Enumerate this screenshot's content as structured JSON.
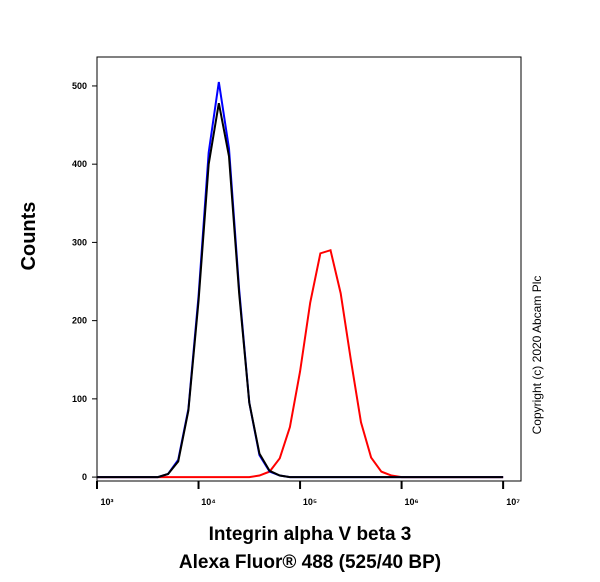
{
  "chart_data": {
    "type": "line",
    "x_label": [
      "Integrin alpha V beta 3",
      "Alexa Fluor® 488  (525/40 BP)"
    ],
    "y_label": "Counts",
    "annotation": "Copyright (c) 2020 Abcam Plc",
    "x_log": true,
    "x": [
      1000,
      1259,
      1585,
      1995,
      2512,
      3162,
      3981,
      5012,
      6310,
      7943,
      10000,
      12589,
      15849,
      19953,
      25119,
      31623,
      39811,
      50119,
      63096,
      79433,
      100000,
      125893,
      158489,
      199526,
      251189,
      316228,
      398107,
      501187,
      630957,
      794328,
      1000000,
      1258925,
      1584893,
      1995262,
      2511886,
      3162278,
      3981072,
      5011872,
      6309573,
      7943282,
      10000000
    ],
    "series": [
      {
        "color": "#ff0000",
        "values": [
          0,
          0,
          0,
          0,
          0,
          0,
          0,
          0,
          0,
          0,
          0,
          0,
          0,
          0,
          0,
          0,
          2,
          7,
          24,
          64,
          135,
          223,
          286,
          290,
          235,
          150,
          70,
          25,
          7,
          2,
          0,
          0,
          0,
          0,
          0,
          0,
          0,
          0,
          0,
          0,
          0
        ]
      },
      {
        "color": "#0000ff",
        "values": [
          0,
          0,
          0,
          0,
          0,
          0,
          0,
          4,
          22,
          87,
          231,
          415,
          505,
          420,
          240,
          95,
          28,
          7,
          2,
          0,
          0,
          0,
          0,
          0,
          0,
          0,
          0,
          0,
          0,
          0,
          0,
          0,
          0,
          0,
          0,
          0,
          0,
          0,
          0,
          0,
          0
        ]
      },
      {
        "color": "#000000",
        "values": [
          0,
          0,
          0,
          0,
          0,
          0,
          0,
          4,
          20,
          85,
          225,
          400,
          478,
          410,
          235,
          95,
          30,
          8,
          2,
          0,
          0,
          0,
          0,
          0,
          0,
          0,
          0,
          0,
          0,
          0,
          0,
          0,
          0,
          0,
          0,
          0,
          0,
          0,
          0,
          0,
          0
        ]
      }
    ],
    "xlim": [
      1000,
      15000000
    ],
    "xticks": [
      {
        "value": 1000,
        "label": "10³"
      },
      {
        "value": 10000,
        "label": "10⁴"
      },
      {
        "value": 100000,
        "label": "10⁵"
      },
      {
        "value": 1000000,
        "label": "10⁶"
      },
      {
        "value": 10000000,
        "label": "10⁷"
      }
    ],
    "ylim": [
      -5,
      537
    ],
    "yticks": [
      0,
      100,
      200,
      300,
      400,
      500
    ]
  }
}
